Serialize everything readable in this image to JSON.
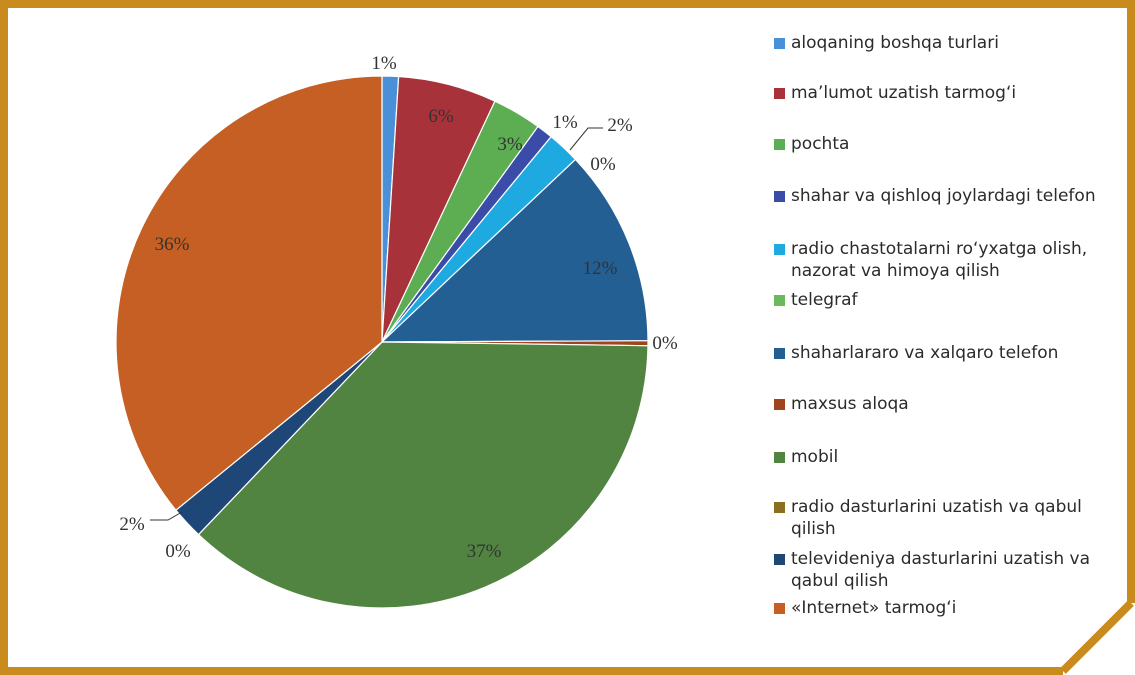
{
  "frame": {
    "border_color": "#C98A1E"
  },
  "chart_data": {
    "type": "pie",
    "slices": [
      {
        "label": "aloqaning boshqa turlari",
        "value": 1,
        "data_label": "1%",
        "color": "#4A90D9"
      },
      {
        "label": "ma’lumot uzatish tarmog‘i",
        "value": 6,
        "data_label": "6%",
        "color": "#A8323A"
      },
      {
        "label": "pochta",
        "value": 3,
        "data_label": "3%",
        "color": "#5DAE52"
      },
      {
        "label": "shahar va qishloq joylardagi telefon",
        "value": 1,
        "data_label": "1%",
        "color": "#3B4BA8"
      },
      {
        "label": "radio chastotalarni ro‘yxatga olish, nazorat va himoya qilish",
        "value": 2,
        "data_label": "2%",
        "color": "#1FA9E1"
      },
      {
        "label": "telegraf",
        "value": 0,
        "data_label": "0%",
        "color": "#6BB85D"
      },
      {
        "label": "shaharlararo va xalqaro telefon",
        "value": 12,
        "data_label": "12%",
        "color": "#245F93"
      },
      {
        "label": "maxsus aloqa",
        "value": 0.3,
        "data_label": "0%",
        "color": "#A0441E"
      },
      {
        "label": "mobil",
        "value": 37,
        "data_label": "37%",
        "color": "#508440"
      },
      {
        "label": "radio dasturlarini uzatish va qabul qilish",
        "value": 0,
        "data_label": "0%",
        "color": "#8B6F1E"
      },
      {
        "label": "televideniya dasturlarini uzatish va qabul qilish",
        "value": 2,
        "data_label": "2%",
        "color": "#1E4778"
      },
      {
        "label": "«Internet» tarmog‘i",
        "value": 36,
        "data_label": "36%",
        "color": "#C55F24"
      }
    ]
  }
}
